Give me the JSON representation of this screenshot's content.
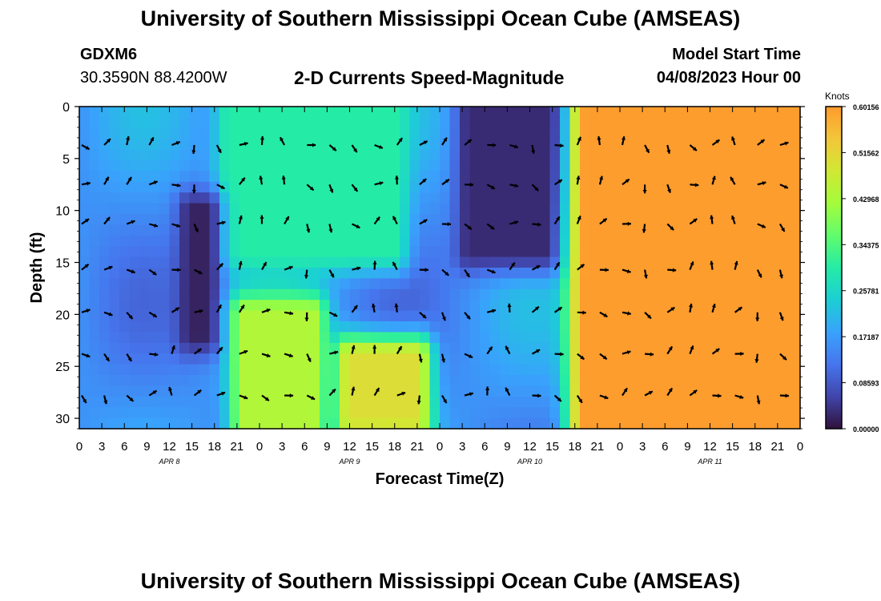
{
  "header": {
    "title": "University of Southern Mississippi Ocean Cube (AMSEAS)",
    "station": "GDXM6",
    "coords": "30.3590N  88.4200W",
    "subtitle": "2-D Currents Speed-Magnitude",
    "model_start_label": "Model Start Time",
    "model_start_value": "04/08/2023 Hour 00"
  },
  "footer": {
    "title": "University of Southern Mississippi Ocean Cube (AMSEAS)"
  },
  "chart_data": {
    "type": "heatmap",
    "title": "2-D Currents Speed-Magnitude",
    "xlabel": "Forecast Time(Z)",
    "ylabel": "Depth (ft)",
    "x_tick_labels": [
      "0",
      "3",
      "6",
      "9",
      "12",
      "15",
      "18",
      "21",
      "0",
      "3",
      "6",
      "9",
      "12",
      "15",
      "18",
      "21",
      "0",
      "3",
      "6",
      "9",
      "12",
      "15",
      "18",
      "21",
      "0",
      "3",
      "6",
      "9",
      "12",
      "15",
      "18",
      "21",
      "0"
    ],
    "date_labels": [
      {
        "label": "APR 8",
        "hour": 12
      },
      {
        "label": "APR 9",
        "hour": 36
      },
      {
        "label": "APR 10",
        "hour": 60
      },
      {
        "label": "APR 11",
        "hour": 84
      }
    ],
    "xlim": [
      0,
      96
    ],
    "ylim": [
      0,
      31
    ],
    "y_ticks": [
      0,
      5,
      10,
      15,
      20,
      25,
      30
    ],
    "colorbar": {
      "title": "Knots",
      "range": [
        0.0,
        0.60156
      ],
      "tick_labels": [
        "0.60156",
        "0.51562",
        "0.42968",
        "0.34375",
        "0.25781",
        "0.17187",
        "0.08593",
        "0.00000"
      ],
      "tick_values": [
        0.60156,
        0.51562,
        0.42968,
        0.34375,
        0.25781,
        0.17187,
        0.08593,
        0.0
      ]
    },
    "vector_hours": [
      0,
      3,
      6,
      9,
      12,
      15,
      18,
      21,
      24,
      27,
      30,
      33,
      36,
      39,
      42,
      45,
      48,
      51,
      54,
      57,
      60,
      63,
      66,
      69,
      72,
      75,
      78,
      81,
      84,
      87,
      90,
      93
    ],
    "vector_depths_ft": [
      3.7,
      7.5,
      11.3,
      15.7,
      19.8,
      23.8,
      27.8
    ],
    "speed_features": [
      {
        "hour_start": 67,
        "hour_end": 96,
        "depth_start": 0,
        "depth_end": 31,
        "speed": 0.57
      },
      {
        "hour_start": 20,
        "hour_end": 42,
        "depth_start": 0,
        "depth_end": 14,
        "speed": 0.3
      },
      {
        "hour_start": 15,
        "hour_end": 17,
        "depth_start": 10,
        "depth_end": 22,
        "speed": 0.02
      },
      {
        "hour_start": 52,
        "hour_end": 62,
        "depth_start": 0,
        "depth_end": 14,
        "speed": 0.03
      },
      {
        "hour_start": 22,
        "hour_end": 31,
        "depth_start": 20,
        "depth_end": 31,
        "speed": 0.44
      },
      {
        "hour_start": 36,
        "hour_end": 45,
        "depth_start": 24,
        "depth_end": 30,
        "speed": 0.5
      }
    ]
  }
}
